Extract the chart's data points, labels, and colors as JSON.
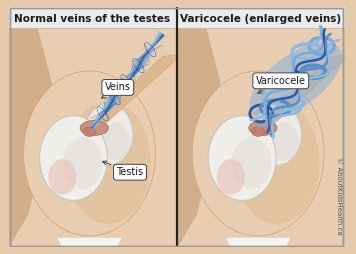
{
  "title_left": "Normal veins of the testes",
  "title_right": "Varicocele (enlarged veins)",
  "label_veins": "Veins",
  "label_testis": "Testis",
  "label_varicocele": "Varicocele",
  "bg_body": "#e5c9a8",
  "bg_header": "#ebebeb",
  "skin_light": "#e8cdb0",
  "skin_mid": "#d4a87a",
  "skin_dark": "#c49060",
  "testis_white": "#f2f0ed",
  "testis_shadow": "#dedad5",
  "testis_pink": "#e8b8a8",
  "epi_color": "#c8907a",
  "cord_color": "#dbb890",
  "vein_blue": "#5b8ec4",
  "vein_dark": "#2d5a9e",
  "vein_light": "#90b8e0",
  "vein_fill": "#7aaad8",
  "var_fill": "#6699cc",
  "divider": "#222222",
  "label_bg": "#ffffff",
  "label_border": "#444444",
  "text_color": "#1a1a1a",
  "copyright": "© AboutKidsHealth.ca",
  "title_fs": 7.5,
  "label_fs": 7.0,
  "copy_fs": 5.0
}
